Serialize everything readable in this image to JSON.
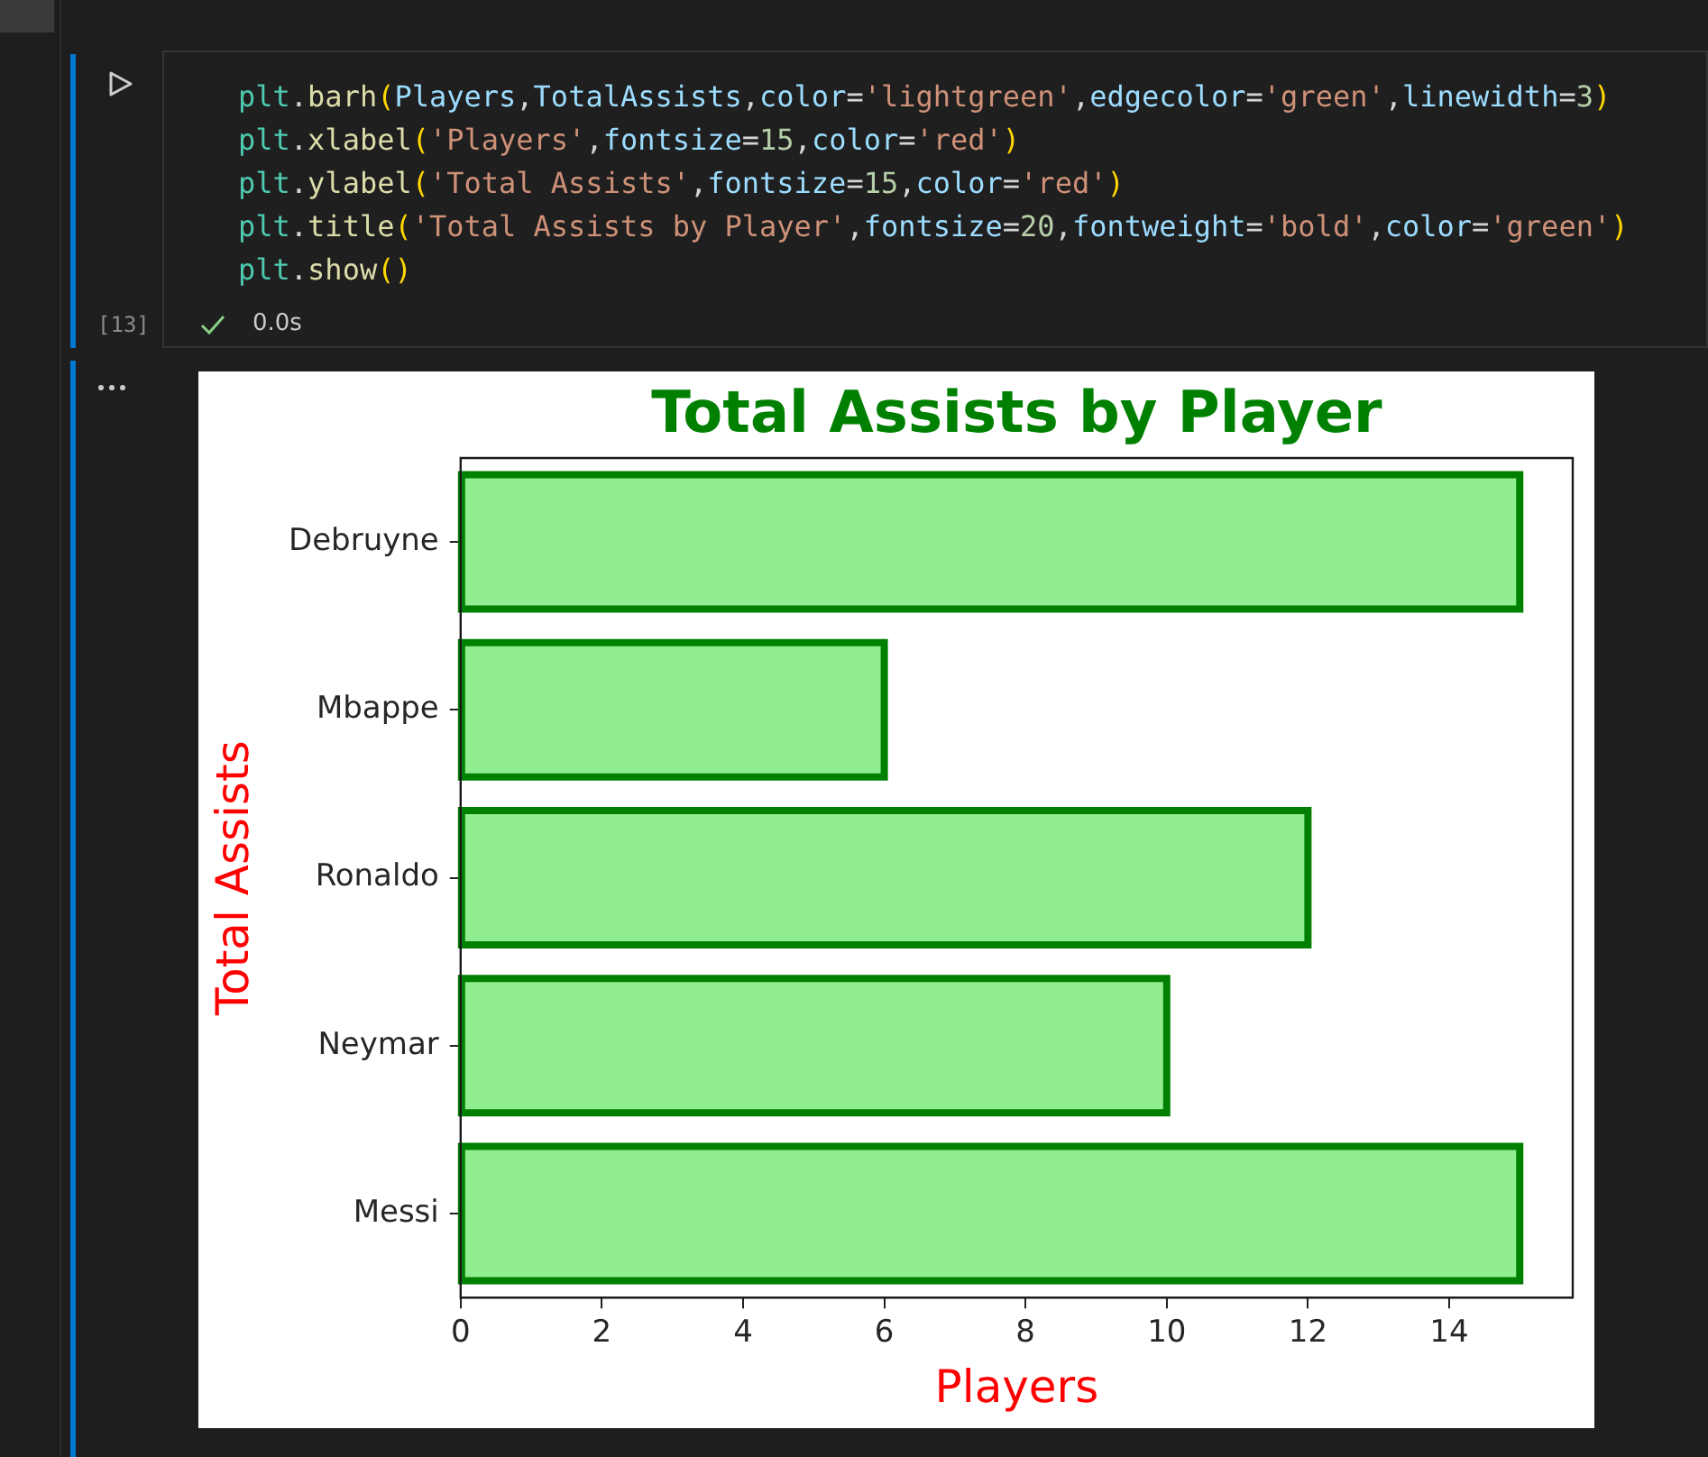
{
  "chart_data": {
    "type": "bar",
    "orientation": "horizontal",
    "title": "Total Assists by Player",
    "xlabel": "Players",
    "ylabel": "Total Assists",
    "categories": [
      "Debruyne",
      "Mbappe",
      "Ronaldo",
      "Neymar",
      "Messi"
    ],
    "values": [
      15,
      6,
      12,
      10,
      15
    ],
    "color": "#90ee90",
    "xlim": [
      0,
      15.75
    ],
    "xticks": [
      0,
      2,
      4,
      6,
      8,
      10,
      12,
      14
    ],
    "grid": false,
    "legend": false,
    "annotations": [
      "plt.barh(Players,TotalAssists,color='lightgreen',edgecolor='green',linewidth=3)\nplt.xlabel('Players',fontsize=15,color='red')\nplt.ylabel('Total Assists',fontsize=15,color='red')\nplt.title('Total Assists by Player',fontsize=20,fontweight='bold',color='green')\nplt.show()",
      "[13]",
      "0.0s"
    ]
  }
}
